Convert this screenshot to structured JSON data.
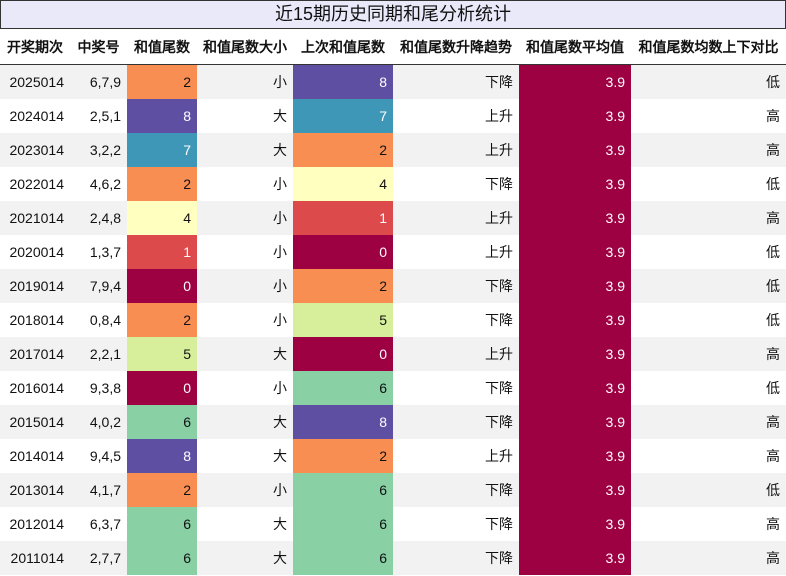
{
  "title": "近15期历史同期和尾分析统计",
  "table": {
    "headers": [
      "开奖期次",
      "中奖号",
      "和值尾数",
      "和值尾数大小",
      "上次和值尾数",
      "和值尾数升降趋势",
      "和值尾数平均值",
      "和值尾数均数上下对比"
    ],
    "heatmap_columns": [
      2,
      4,
      6
    ],
    "rows": [
      [
        2025014,
        "6,7,9",
        2,
        "小",
        8,
        "下降",
        3.9,
        "低"
      ],
      [
        2024014,
        "2,5,1",
        8,
        "大",
        7,
        "上升",
        3.9,
        "高"
      ],
      [
        2023014,
        "3,2,2",
        7,
        "大",
        2,
        "上升",
        3.9,
        "高"
      ],
      [
        2022014,
        "4,6,2",
        2,
        "小",
        4,
        "下降",
        3.9,
        "低"
      ],
      [
        2021014,
        "2,4,8",
        4,
        "小",
        1,
        "上升",
        3.9,
        "高"
      ],
      [
        2020014,
        "1,3,7",
        1,
        "小",
        0,
        "上升",
        3.9,
        "低"
      ],
      [
        2019014,
        "7,9,4",
        0,
        "小",
        2,
        "下降",
        3.9,
        "低"
      ],
      [
        2018014,
        "0,8,4",
        2,
        "小",
        5,
        "下降",
        3.9,
        "低"
      ],
      [
        2017014,
        "2,2,1",
        5,
        "大",
        0,
        "上升",
        3.9,
        "高"
      ],
      [
        2016014,
        "9,3,8",
        0,
        "小",
        6,
        "下降",
        3.9,
        "低"
      ],
      [
        2015014,
        "4,0,2",
        6,
        "大",
        8,
        "下降",
        3.9,
        "高"
      ],
      [
        2014014,
        "9,4,5",
        8,
        "大",
        2,
        "上升",
        3.9,
        "高"
      ],
      [
        2013014,
        "4,1,7",
        2,
        "小",
        6,
        "下降",
        3.9,
        "低"
      ],
      [
        2012014,
        "6,3,7",
        6,
        "大",
        6,
        "下降",
        3.9,
        "高"
      ],
      [
        2011014,
        "2,7,7",
        6,
        "大",
        6,
        "下降",
        3.9,
        "高"
      ]
    ]
  }
}
